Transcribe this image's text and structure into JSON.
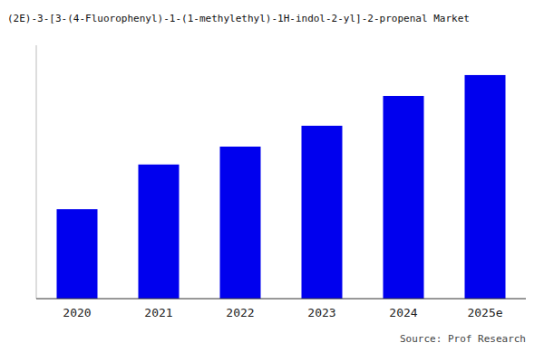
{
  "chart_data": {
    "type": "bar",
    "title": "(2E)-3-[3-(4-Fluorophenyl)-1-(1-methylethyl)-1H-indol-2-yl]-2-propenal Market",
    "categories": [
      "2020",
      "2021",
      "2022",
      "2023",
      "2024",
      "2025e"
    ],
    "values": [
      30,
      45,
      51,
      58,
      68,
      75
    ],
    "color": "#0000ee",
    "ylim": [
      0,
      85
    ],
    "grid": false,
    "tick_labels": "x",
    "annotations": [
      "Source: Prof Research"
    ]
  }
}
